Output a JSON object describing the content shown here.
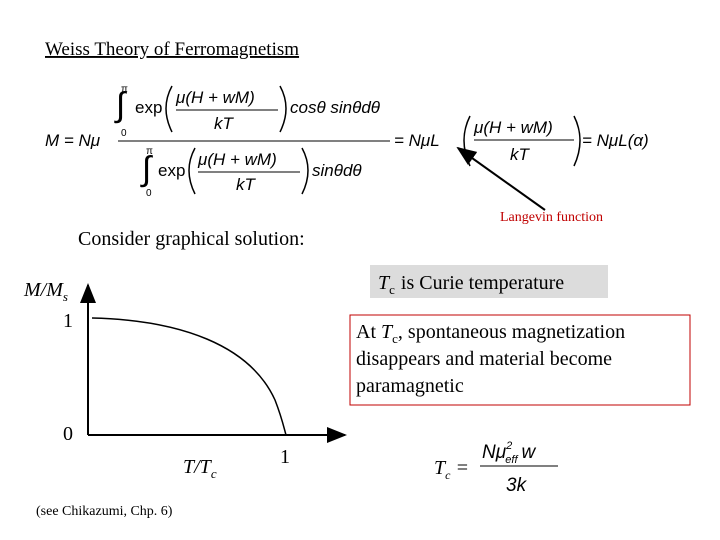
{
  "title": "Weiss Theory of Ferromagnetism",
  "equation": {
    "lhs": "M = Nμ",
    "upper_limit": "π",
    "lower_limit": "0",
    "exp": "exp",
    "arg_numerator": "μ(H + wM)",
    "arg_denominator": "kT",
    "numerator_tail": "cosθ sinθdθ",
    "denominator_tail": "sinθdθ",
    "middle": "= NμL",
    "rhs": "= NμL(α)"
  },
  "annotation": "Langevin function",
  "prompt": "Consider graphical solution:",
  "callout": {
    "symbol": "T",
    "subscript": "c",
    "text": "is Curie temperature"
  },
  "note": {
    "prefix": "At",
    "symbol": "T",
    "subscript": "c",
    "line1": ", spontaneous magnetization",
    "line2": "disappears and material become",
    "line3": "paramagnetic"
  },
  "graph": {
    "y_label": {
      "main": "M/M",
      "sub": "s"
    },
    "y_top": "1",
    "y_origin": "0",
    "x_label": {
      "main": "T/T",
      "sub": "c"
    },
    "x_end": "1"
  },
  "curie_equation": {
    "lhs": "T",
    "lhs_sub": "c",
    "equals": "=",
    "numerator": "Nμ",
    "sup": "2",
    "sub": "eff",
    "factor": "w",
    "denominator": "3k"
  },
  "reference": "(see Chikazumi, Chp. 6)"
}
